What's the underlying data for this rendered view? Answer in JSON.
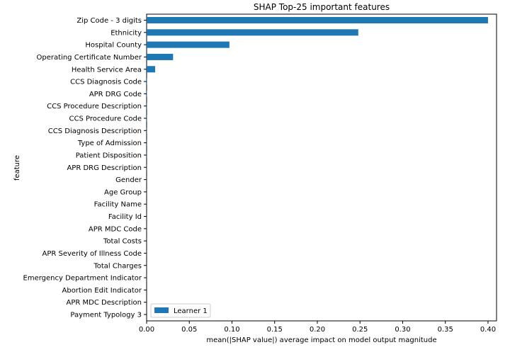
{
  "chart_data": {
    "type": "bar",
    "orientation": "horizontal",
    "title": "SHAP Top-25 important features",
    "xlabel": "mean(|SHAP value|) average impact on model output magnitude",
    "ylabel": "feature",
    "xlim": [
      0,
      0.41
    ],
    "xticks": [
      "0.00",
      "0.05",
      "0.10",
      "0.15",
      "0.20",
      "0.25",
      "0.30",
      "0.35",
      "0.40"
    ],
    "xtick_values": [
      0,
      0.05,
      0.1,
      0.15,
      0.2,
      0.25,
      0.3,
      0.35,
      0.4
    ],
    "categories": [
      "Zip Code - 3 digits",
      "Ethnicity",
      "Hospital County",
      "Operating Certificate Number",
      "Health Service Area",
      "CCS Diagnosis Code",
      "APR DRG Code",
      "CCS Procedure Description",
      "CCS Procedure Code",
      "CCS Diagnosis Description",
      "Type of Admission",
      "Patient Disposition",
      "APR DRG Description",
      "Gender",
      "Age Group",
      "Facility Name",
      "Facility Id",
      "APR MDC Code",
      "Total Costs",
      "APR Severity of Illness Code",
      "Total Charges",
      "Emergency Department Indicator",
      "Abortion Edit Indicator",
      "APR MDC Description",
      "Payment Typology 3"
    ],
    "series": [
      {
        "name": "Learner 1",
        "color": "#1f77b4",
        "values": [
          0.4,
          0.248,
          0.097,
          0.031,
          0.01,
          0.0005,
          0.0004,
          0.0003,
          0.0003,
          0.0002,
          0.0002,
          0.0002,
          0.0002,
          0.0001,
          0.0001,
          0.0001,
          0.0001,
          0.0001,
          0.0001,
          0.0001,
          0.0001,
          0.0001,
          0.0,
          0.0,
          0.0
        ]
      }
    ],
    "grid": false,
    "legend_position": "lower-left"
  }
}
